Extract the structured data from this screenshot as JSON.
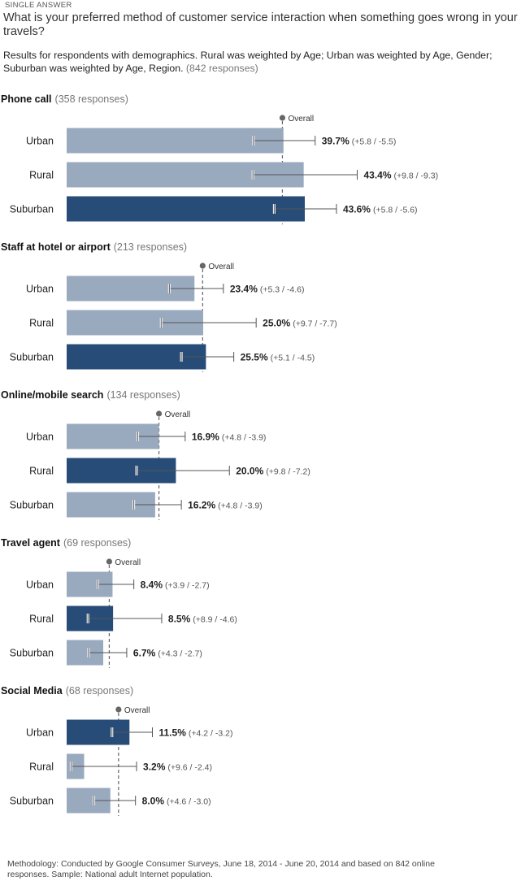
{
  "header": {
    "tag": "SINGLE ANSWER",
    "question": "What is your preferred method of customer service interaction when something goes wrong in your travels?",
    "subtitle": "Results for respondents with demographics. Rural was weighted by Age; Urban was weighted by Age, Gender; Suburban was weighted by Age, Region.",
    "responses": "(842 responses)"
  },
  "footer": {
    "methodology": "Methodology: Conducted by Google Consumer Surveys, June 18, 2014 - June 20, 2014 and based on 842 online responses. Sample: National adult Internet population."
  },
  "colors": {
    "bar_default": "#99a9be",
    "bar_highlight": "#284c78",
    "error_bar": "#555555",
    "overall_line": "#666666"
  },
  "chart_data": {
    "type": "bar",
    "orientation": "horizontal",
    "categories": [
      "Urban",
      "Rural",
      "Suburban"
    ],
    "overall_label": "Overall",
    "sections": [
      {
        "title": "Phone call",
        "responses": "(358 responses)",
        "overall": 39.5,
        "highlight": "Suburban",
        "values": [
          39.7,
          43.4,
          43.6
        ],
        "labels": [
          "39.7%",
          "43.4%",
          "43.6%"
        ],
        "ci": [
          "(+5.8 / -5.5)",
          "(+9.8 / -9.3)",
          "(+5.8 / -5.6)"
        ],
        "ci_plus": [
          5.8,
          9.8,
          5.8
        ],
        "ci_minus": [
          5.5,
          9.3,
          5.6
        ]
      },
      {
        "title": "Staff at hotel or airport",
        "responses": "(213 responses)",
        "overall": 24.9,
        "highlight": "Suburban",
        "values": [
          23.4,
          25.0,
          25.5
        ],
        "labels": [
          "23.4%",
          "25.0%",
          "25.5%"
        ],
        "ci": [
          "(+5.3 / -4.6)",
          "(+9.7 / -7.7)",
          "(+5.1 / -4.5)"
        ],
        "ci_plus": [
          5.3,
          9.7,
          5.1
        ],
        "ci_minus": [
          4.6,
          7.7,
          4.5
        ]
      },
      {
        "title": "Online/mobile search",
        "responses": "(134 responses)",
        "overall": 16.9,
        "highlight": "Rural",
        "values": [
          16.9,
          20.0,
          16.2
        ],
        "labels": [
          "16.9%",
          "20.0%",
          "16.2%"
        ],
        "ci": [
          "(+4.8 / -3.9)",
          "(+9.8 / -7.2)",
          "(+4.8 / -3.9)"
        ],
        "ci_plus": [
          4.8,
          9.8,
          4.8
        ],
        "ci_minus": [
          3.9,
          7.2,
          3.9
        ]
      },
      {
        "title": "Travel agent",
        "responses": "(69 responses)",
        "overall": 7.8,
        "highlight": "Rural",
        "values": [
          8.4,
          8.5,
          6.7
        ],
        "labels": [
          "8.4%",
          "8.5%",
          "6.7%"
        ],
        "ci": [
          "(+3.9 / -2.7)",
          "(+8.9 / -4.6)",
          "(+4.3 / -2.7)"
        ],
        "ci_plus": [
          3.9,
          8.9,
          4.3
        ],
        "ci_minus": [
          2.7,
          4.6,
          2.7
        ]
      },
      {
        "title": "Social Media",
        "responses": "(68 responses)",
        "overall": 9.5,
        "highlight": "Urban",
        "values": [
          11.5,
          3.2,
          8.0
        ],
        "labels": [
          "11.5%",
          "3.2%",
          "8.0%"
        ],
        "ci": [
          "(+4.2 / -3.2)",
          "(+9.6 / -2.4)",
          "(+4.6 / -3.0)"
        ],
        "ci_plus": [
          4.2,
          9.6,
          4.6
        ],
        "ci_minus": [
          3.2,
          2.4,
          3.0
        ]
      }
    ]
  }
}
